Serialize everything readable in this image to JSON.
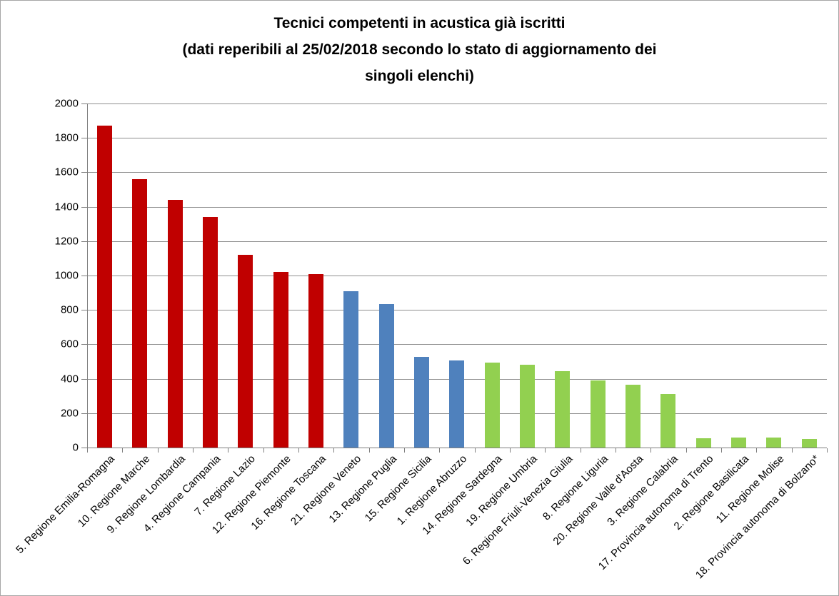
{
  "title": {
    "lines": [
      "Tecnici competenti in acustica già iscritti",
      "(dati reperibili al 25/02/2018 secondo lo stato di aggiornamento dei",
      "singoli elenchi)"
    ]
  },
  "colors": {
    "red": "#C00000",
    "blue": "#4F81BD",
    "green": "#92D050",
    "gridline": "#8f8f8f",
    "axis": "#7f7f7f",
    "text": "#000000",
    "border": "#A6A6A6",
    "background": "#FFFFFF"
  },
  "chart_data": {
    "type": "bar",
    "title": "Tecnici competenti in acustica già iscritti (dati reperibili al 25/02/2018 secondo lo stato di aggiornamento dei singoli elenchi)",
    "xlabel": "",
    "ylabel": "",
    "ylim": [
      0,
      2000
    ],
    "yticks": [
      0,
      200,
      400,
      600,
      800,
      1000,
      1200,
      1400,
      1600,
      1800,
      2000
    ],
    "grid": true,
    "legend": "none",
    "categories": [
      "5. Regione Emilia-Romagna",
      "10. Regione Marche",
      "9. Regione Lombardia",
      "4. Regione Campania",
      "7. Regione Lazio",
      "12. Regione Piemonte",
      "16. Regione Toscana",
      "21. Regione Veneto",
      "13. Regione Puglia",
      "15. Regione Sicilia",
      "1. Regione Abruzzo",
      "14. Regione Sardegna",
      "19. Regione Umbria",
      "6. Regione Friuli-Venezia Giulia",
      "8. Regione Liguria",
      "20. Regione Valle d'Aosta",
      "3. Regione Calabria",
      "17. Provincia autonoma di Trento",
      "2. Regione Basilicata",
      "11. Regione Molise",
      "18. Provincia autonoma di Bolzano*"
    ],
    "values": [
      1870,
      1560,
      1440,
      1340,
      1120,
      1020,
      1010,
      910,
      835,
      525,
      505,
      495,
      480,
      445,
      390,
      365,
      310,
      55,
      57,
      57,
      50
    ],
    "bar_colors": [
      "#C00000",
      "#C00000",
      "#C00000",
      "#C00000",
      "#C00000",
      "#C00000",
      "#C00000",
      "#4F81BD",
      "#4F81BD",
      "#4F81BD",
      "#4F81BD",
      "#92D050",
      "#92D050",
      "#92D050",
      "#92D050",
      "#92D050",
      "#92D050",
      "#92D050",
      "#92D050",
      "#92D050",
      "#92D050"
    ]
  }
}
